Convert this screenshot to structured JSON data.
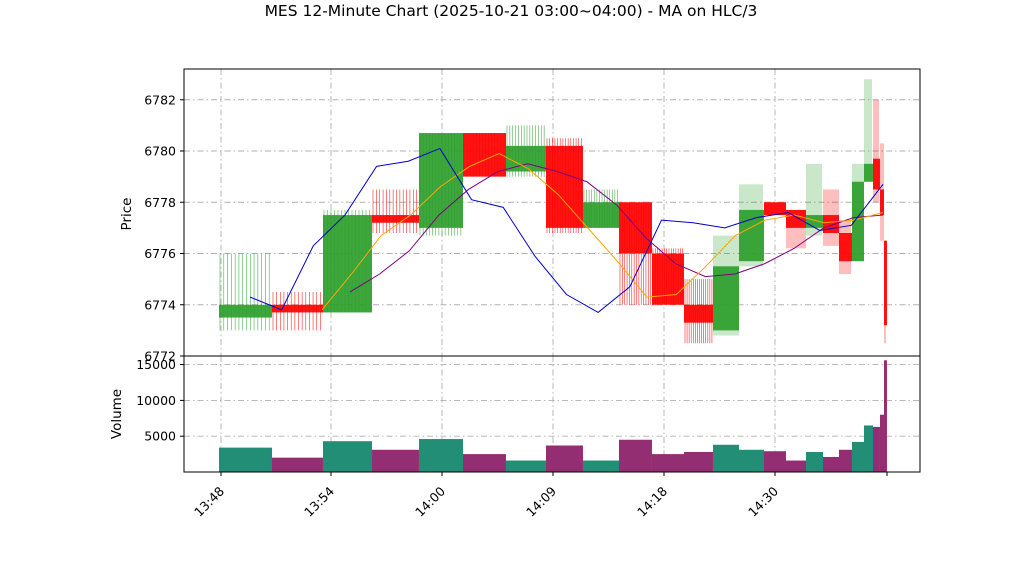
{
  "chart_data": {
    "type": "candlestick",
    "title": "MES 12-Minute Chart (2025-10-21 03:00~04:00) - MA on HLC/3",
    "price_panel": {
      "ylabel": "Price",
      "ylim": [
        6772,
        6783.2
      ],
      "yticks": [
        6772,
        6774,
        6776,
        6778,
        6780,
        6782
      ]
    },
    "volume_panel": {
      "ylabel": "Volume",
      "ylim": [
        0,
        16200
      ],
      "yticks": [
        5000,
        10000,
        15000
      ],
      "tick_labels": [
        "5000",
        "10000",
        "15000"
      ]
    },
    "x_ticks": [
      "13:48",
      "13:54",
      "14:00",
      "14:09",
      "14:18",
      "14:30"
    ],
    "grid": true,
    "colors": {
      "up": "#2ca02c",
      "down": "#ff0000",
      "ma_fast": "#0000cc",
      "ma_mid": "#ffa500",
      "ma_slow": "#800080",
      "volume_up": "#1f8a8a",
      "volume_down": "#a03070"
    },
    "candles": [
      {
        "open": 6773.5,
        "high": 6776.0,
        "low": 6773.0,
        "close": 6774.0,
        "volume": 3400
      },
      {
        "open": 6774.0,
        "high": 6774.5,
        "low": 6773.0,
        "close": 6773.7,
        "volume": 2000
      },
      {
        "open": 6773.7,
        "high": 6777.7,
        "low": 6773.7,
        "close": 6777.5,
        "volume": 4300
      },
      {
        "open": 6777.5,
        "high": 6778.5,
        "low": 6776.8,
        "close": 6777.2,
        "volume": 3100
      },
      {
        "open": 6777.0,
        "high": 6780.7,
        "low": 6776.7,
        "close": 6780.7,
        "volume": 4600
      },
      {
        "open": 6780.7,
        "high": 6780.7,
        "low": 6779.0,
        "close": 6779.0,
        "volume": 2500
      },
      {
        "open": 6779.2,
        "high": 6781.0,
        "low": 6779.0,
        "close": 6780.2,
        "volume": 1600
      },
      {
        "open": 6780.2,
        "high": 6780.5,
        "low": 6776.8,
        "close": 6777.0,
        "volume": 3700
      },
      {
        "open": 6777.0,
        "high": 6778.5,
        "low": 6777.0,
        "close": 6778.0,
        "volume": 1600
      },
      {
        "open": 6778.0,
        "high": 6778.0,
        "low": 6774.0,
        "close": 6776.0,
        "volume": 4500
      },
      {
        "open": 6776.0,
        "high": 6776.2,
        "low": 6774.0,
        "close": 6774.0,
        "volume": 2500
      },
      {
        "open": 6774.0,
        "high": 6775.0,
        "low": 6772.5,
        "close": 6773.3,
        "volume": 2800
      },
      {
        "open": 6773.0,
        "high": 6776.7,
        "low": 6772.8,
        "close": 6775.5,
        "volume": 3800
      },
      {
        "open": 6775.7,
        "high": 6778.7,
        "low": 6775.5,
        "close": 6777.7,
        "volume": 3100
      },
      {
        "open": 6778.0,
        "high": 6778.0,
        "low": 6777.5,
        "close": 6777.5,
        "volume": 2900
      },
      {
        "open": 6777.7,
        "high": 6777.7,
        "low": 6776.2,
        "close": 6777.0,
        "volume": 1600
      },
      {
        "open": 6777.0,
        "high": 6779.5,
        "low": 6776.7,
        "close": 6777.5,
        "volume": 2800
      },
      {
        "open": 6777.5,
        "high": 6778.5,
        "low": 6776.3,
        "close": 6776.8,
        "volume": 2100
      },
      {
        "open": 6776.8,
        "high": 6777.3,
        "low": 6775.2,
        "close": 6775.7,
        "volume": 3100
      },
      {
        "open": 6775.7,
        "high": 6779.5,
        "low": 6775.7,
        "close": 6778.8,
        "volume": 4200
      },
      {
        "open": 6778.8,
        "high": 6782.8,
        "low": 6778.8,
        "close": 6779.5,
        "volume": 6500
      },
      {
        "open": 6779.7,
        "high": 6782.0,
        "low": 6778.0,
        "close": 6778.5,
        "volume": 6300
      },
      {
        "open": 6778.5,
        "high": 6780.3,
        "low": 6776.5,
        "close": 6777.5,
        "volume": 8000
      },
      {
        "open": 6776.5,
        "high": 6776.5,
        "low": 6772.5,
        "close": 6773.2,
        "volume": 15600
      }
    ],
    "ma_fast": [
      6774.3,
      6773.8,
      6776.3,
      6777.5,
      6779.4,
      6779.6,
      6780.1,
      6778.1,
      6777.8,
      6775.9,
      6774.4,
      6773.7,
      6774.7,
      6777.3,
      6777.2,
      6777.0,
      6777.4,
      6777.6,
      6776.9,
      6777.1,
      6778.7
    ],
    "ma_mid": [
      6773.8,
      6775.2,
      6776.7,
      6777.5,
      6778.6,
      6779.4,
      6779.9,
      6779.3,
      6778.3,
      6777.0,
      6775.7,
      6774.3,
      6774.4,
      6775.5,
      6776.7,
      6777.3,
      6777.5,
      6777.2,
      6777.3,
      6777.6
    ],
    "ma_slow": [
      6774.5,
      6775.2,
      6776.1,
      6777.5,
      6778.5,
      6779.2,
      6779.5,
      6779.2,
      6778.8,
      6777.9,
      6776.6,
      6775.6,
      6775.1,
      6775.2,
      6775.6,
      6776.2,
      6777.0,
      6777.4,
      6777.5
    ]
  }
}
